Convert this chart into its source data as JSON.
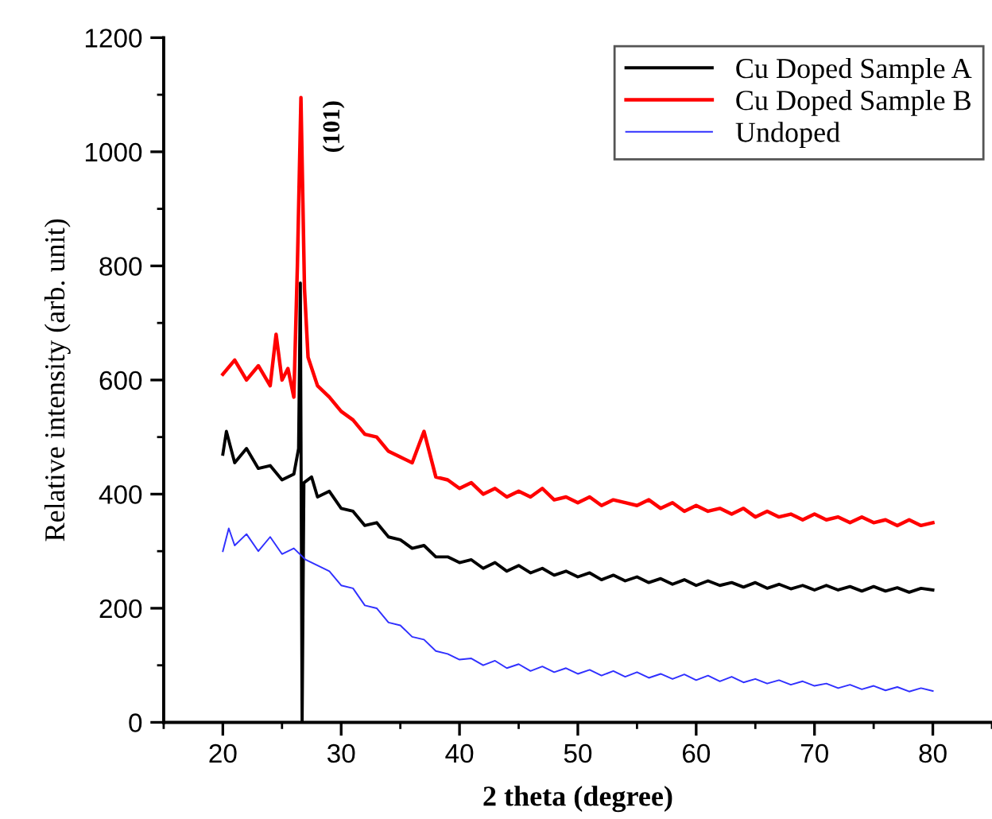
{
  "chart_data": {
    "type": "line",
    "xlabel": "2 theta (degree)",
    "ylabel": "Relative intensity (arb. unit)",
    "xlim": [
      15,
      85
    ],
    "xticks": [
      20,
      30,
      40,
      50,
      60,
      70,
      80
    ],
    "ylim": [
      0,
      1200
    ],
    "yticks": [
      0,
      200,
      400,
      600,
      800,
      1000,
      1200
    ],
    "grid": false,
    "legend": "top right",
    "marker": "none",
    "line_style": "solid",
    "annotations": [
      "(101)"
    ],
    "series": [
      {
        "name": "Cu Doped Sample A",
        "color": "#000000",
        "x": [
          20,
          20.3,
          21,
          22,
          23,
          24,
          25,
          26,
          26.4,
          26.55,
          26.7,
          26.85,
          27.5,
          28,
          29,
          30,
          31,
          32,
          33,
          34,
          35,
          36,
          37,
          38,
          39,
          40,
          41,
          42,
          43,
          44,
          45,
          46,
          47,
          48,
          49,
          50,
          51,
          52,
          53,
          54,
          55,
          56,
          57,
          58,
          59,
          60,
          61,
          62,
          63,
          64,
          65,
          66,
          67,
          68,
          69,
          70,
          71,
          72,
          73,
          74,
          75,
          76,
          77,
          78,
          79,
          80
        ],
        "values": [
          470,
          510,
          455,
          480,
          445,
          450,
          425,
          435,
          480,
          770,
          0,
          420,
          430,
          395,
          405,
          375,
          370,
          345,
          350,
          325,
          320,
          305,
          310,
          290,
          290,
          280,
          285,
          270,
          280,
          265,
          275,
          262,
          270,
          258,
          265,
          255,
          262,
          250,
          258,
          248,
          255,
          245,
          252,
          242,
          250,
          240,
          248,
          240,
          245,
          237,
          245,
          235,
          242,
          234,
          240,
          232,
          240,
          232,
          238,
          230,
          238,
          230,
          236,
          228,
          235,
          232
        ]
      },
      {
        "name": "Cu Doped Sample B",
        "color": "#ff0000",
        "x": [
          20,
          21,
          22,
          23,
          24,
          24.5,
          25,
          25.5,
          26,
          26.3,
          26.6,
          26.9,
          27.2,
          28,
          29,
          30,
          31,
          32,
          33,
          34,
          35,
          36,
          37,
          38,
          39,
          40,
          41,
          42,
          43,
          44,
          45,
          46,
          47,
          48,
          49,
          50,
          51,
          52,
          53,
          54,
          55,
          56,
          57,
          58,
          59,
          60,
          61,
          62,
          63,
          64,
          65,
          66,
          67,
          68,
          69,
          70,
          71,
          72,
          73,
          74,
          75,
          76,
          77,
          78,
          79,
          80
        ],
        "values": [
          610,
          635,
          600,
          625,
          590,
          680,
          600,
          620,
          570,
          800,
          1095,
          760,
          640,
          590,
          570,
          545,
          530,
          505,
          500,
          475,
          465,
          455,
          510,
          430,
          425,
          410,
          420,
          400,
          410,
          395,
          405,
          395,
          410,
          390,
          395,
          385,
          395,
          380,
          390,
          385,
          380,
          390,
          375,
          385,
          370,
          380,
          370,
          375,
          365,
          375,
          360,
          370,
          360,
          365,
          355,
          365,
          355,
          360,
          350,
          360,
          350,
          355,
          345,
          355,
          345,
          350
        ]
      },
      {
        "name": "Undoped",
        "color": "#3030ff",
        "x": [
          20,
          20.5,
          21,
          22,
          23,
          24,
          25,
          26,
          27,
          28,
          29,
          30,
          31,
          32,
          33,
          34,
          35,
          36,
          37,
          38,
          39,
          40,
          41,
          42,
          43,
          44,
          45,
          46,
          47,
          48,
          49,
          50,
          51,
          52,
          53,
          54,
          55,
          56,
          57,
          58,
          59,
          60,
          61,
          62,
          63,
          64,
          65,
          66,
          67,
          68,
          69,
          70,
          71,
          72,
          73,
          74,
          75,
          76,
          77,
          78,
          79,
          80
        ],
        "values": [
          300,
          340,
          310,
          330,
          300,
          325,
          295,
          305,
          285,
          275,
          265,
          240,
          235,
          205,
          200,
          175,
          170,
          150,
          145,
          125,
          120,
          110,
          112,
          100,
          108,
          95,
          102,
          90,
          98,
          88,
          95,
          85,
          92,
          82,
          90,
          80,
          88,
          78,
          85,
          76,
          84,
          74,
          82,
          72,
          80,
          70,
          76,
          68,
          74,
          66,
          72,
          64,
          68,
          60,
          66,
          58,
          64,
          56,
          62,
          54,
          60,
          55
        ]
      }
    ]
  }
}
